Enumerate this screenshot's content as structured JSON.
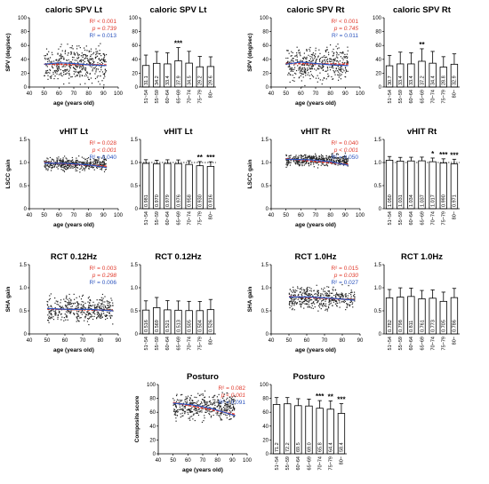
{
  "colors": {
    "red": "#e0392b",
    "blue": "#2a52be",
    "scatter": "#222222"
  },
  "chart_data": [
    {
      "type": "scatter",
      "title": "caloric SPV Lt",
      "ylabel": "SPV (deg/sec)",
      "xlabel": "age (years old)",
      "xlim": [
        40,
        100
      ],
      "xticks": [
        "40",
        "50",
        "60",
        "70",
        "80",
        "90",
        "100"
      ],
      "ylim": [
        0,
        100
      ],
      "yticks": [
        "0",
        "20",
        "40",
        "60",
        "80",
        "100"
      ],
      "stats": {
        "r2_red": "R² < 0.001",
        "p_red": "p = 0.739",
        "r2_blue": "R² = 0.013"
      },
      "scatter": {
        "xmin": 50,
        "xmax": 92,
        "center": 33,
        "spread": 18
      },
      "red_line": [
        [
          50,
          33
        ],
        [
          92,
          32
        ]
      ],
      "blue_curve": [
        [
          50,
          33
        ],
        [
          60,
          35
        ],
        [
          70,
          34
        ],
        [
          80,
          32
        ],
        [
          92,
          31
        ]
      ]
    },
    {
      "type": "bar",
      "title": "caloric SPV Lt",
      "categories": [
        "51~54",
        "55~59",
        "60~64",
        "65~69",
        "70~74",
        "75~79",
        "80~"
      ],
      "values": [
        31.1,
        34.2,
        33.4,
        37.9,
        34.5,
        29.2,
        29.6
      ],
      "value_labels": [
        "31.1",
        "34.2",
        "33.4",
        "37.9",
        "34.5",
        "29.2",
        "29.6"
      ],
      "errors": [
        15,
        17,
        16,
        19,
        17,
        15,
        14
      ],
      "ylim": [
        0,
        100
      ],
      "yticks": [
        "0",
        "20",
        "40",
        "60",
        "80",
        "100"
      ],
      "sig": [
        "",
        "",
        "",
        "***",
        "",
        "",
        ""
      ]
    },
    {
      "type": "scatter",
      "title": "caloric SPV Rt",
      "ylabel": "SPV (deg/sec)",
      "xlabel": "age (years old)",
      "xlim": [
        40,
        100
      ],
      "xticks": [
        "40",
        "50",
        "60",
        "70",
        "80",
        "90",
        "100"
      ],
      "ylim": [
        0,
        100
      ],
      "yticks": [
        "0",
        "20",
        "40",
        "60",
        "80",
        "100"
      ],
      "stats": {
        "r2_red": "R² < 0.001",
        "p_red": "p = 0.745",
        "r2_blue": "R² = 0.011"
      },
      "scatter": {
        "xmin": 50,
        "xmax": 92,
        "center": 33,
        "spread": 18
      },
      "red_line": [
        [
          50,
          34
        ],
        [
          92,
          33
        ]
      ],
      "blue_curve": [
        [
          50,
          33
        ],
        [
          60,
          36
        ],
        [
          70,
          34
        ],
        [
          80,
          32
        ],
        [
          92,
          31
        ]
      ]
    },
    {
      "type": "bar",
      "title": "caloric SPV Rt",
      "categories": [
        "51~54",
        "55~59",
        "60~64",
        "65~69",
        "70~74",
        "75~79",
        "80~"
      ],
      "values": [
        30.7,
        33.4,
        33.4,
        37.2,
        34.4,
        28.8,
        32.9
      ],
      "value_labels": [
        "30.7",
        "33.4",
        "33.4",
        "37.2",
        "34.4",
        "28.8",
        "32.9"
      ],
      "errors": [
        15,
        17,
        16,
        18,
        17,
        15,
        15
      ],
      "ylim": [
        0,
        100
      ],
      "yticks": [
        "0",
        "20",
        "40",
        "60",
        "80",
        "100"
      ],
      "sig": [
        "",
        "",
        "",
        "**",
        "",
        "",
        ""
      ]
    },
    {
      "type": "scatter",
      "title": "vHIT Lt",
      "ylabel": "LSCC gain",
      "xlabel": "age (years old)",
      "xlim": [
        40,
        100
      ],
      "xticks": [
        "40",
        "50",
        "60",
        "70",
        "80",
        "90",
        "100"
      ],
      "ylim": [
        0,
        1.5
      ],
      "yticks": [
        "0",
        "0.5",
        "1.0",
        "1.5"
      ],
      "stats": {
        "r2_red": "R² = 0.028",
        "p_red": "p < 0.001",
        "r2_blue": "R² = 0.040"
      },
      "scatter": {
        "xmin": 50,
        "xmax": 92,
        "center": 0.97,
        "spread": 0.1
      },
      "red_line": [
        [
          50,
          1.0
        ],
        [
          92,
          0.92
        ]
      ],
      "blue_curve": [
        [
          50,
          0.99
        ],
        [
          65,
          0.98
        ],
        [
          80,
          0.95
        ],
        [
          92,
          0.89
        ]
      ]
    },
    {
      "type": "bar",
      "title": "vHIT  Lt",
      "categories": [
        "51~54",
        "55~59",
        "60~64",
        "65~69",
        "70~74",
        "75~79",
        "80~"
      ],
      "values": [
        0.981,
        0.97,
        0.979,
        0.976,
        0.958,
        0.93,
        0.916
      ],
      "value_labels": [
        "0.981",
        "0.970",
        "0.979",
        "0.976",
        "0.958",
        "0.930",
        "0.916"
      ],
      "errors": [
        0.08,
        0.08,
        0.08,
        0.08,
        0.08,
        0.09,
        0.1
      ],
      "ylim": [
        0,
        1.5
      ],
      "yticks": [
        "0",
        "0.5",
        "1.0",
        "1.5"
      ],
      "refline": 1.0,
      "sig": [
        "",
        "",
        "",
        "",
        "",
        "**",
        "***"
      ]
    },
    {
      "type": "scatter",
      "title": "vHIT Rt",
      "ylabel": "LSCC gain",
      "xlabel": "age (years old)",
      "xlim": [
        40,
        100
      ],
      "xticks": [
        "40",
        "50",
        "60",
        "70",
        "80",
        "90",
        "100"
      ],
      "ylim": [
        0,
        1.5
      ],
      "yticks": [
        "0",
        "0.5",
        "1.0",
        "1.5"
      ],
      "stats": {
        "r2_red": "R² = 0.040",
        "p_red": "p < 0.001",
        "r2_blue": "R² = 0.050"
      },
      "scatter": {
        "xmin": 50,
        "xmax": 92,
        "center": 1.05,
        "spread": 0.1
      },
      "red_line": [
        [
          50,
          1.08
        ],
        [
          92,
          0.96
        ]
      ],
      "blue_curve": [
        [
          50,
          1.07
        ],
        [
          65,
          1.06
        ],
        [
          80,
          1.02
        ],
        [
          92,
          0.94
        ]
      ]
    },
    {
      "type": "bar",
      "title": "vHIT Rt",
      "categories": [
        "51~54",
        "55~59",
        "60~64",
        "65~69",
        "70~74",
        "75~79",
        "80~"
      ],
      "values": [
        1.05,
        1.031,
        1.034,
        1.037,
        1.017,
        0.99,
        0.971
      ],
      "value_labels": [
        "1.050",
        "1.031",
        "1.034",
        "1.037",
        "1.017",
        "0.990",
        "0.971"
      ],
      "errors": [
        0.08,
        0.08,
        0.08,
        0.08,
        0.08,
        0.09,
        0.1
      ],
      "ylim": [
        0,
        1.5
      ],
      "yticks": [
        "0",
        "0.5",
        "1.0",
        "1.5"
      ],
      "refline": 1.0,
      "sig": [
        "",
        "",
        "",
        "",
        "*",
        "***",
        "***"
      ]
    },
    {
      "type": "scatter",
      "title": "RCT 0.12Hz",
      "ylabel": "SHA gain",
      "xlabel": "age (years old)",
      "xlim": [
        40,
        90
      ],
      "xticks": [
        "40",
        "50",
        "60",
        "70",
        "80",
        "90"
      ],
      "ylim": [
        0,
        1.5
      ],
      "yticks": [
        "0",
        "0.5",
        "1.0",
        "1.5"
      ],
      "stats": {
        "r2_red": "R² = 0.003",
        "p_red": "p = 0.298",
        "r2_blue": "R² = 0.006"
      },
      "scatter": {
        "xmin": 50,
        "xmax": 87,
        "center": 0.53,
        "spread": 0.2
      },
      "red_line": [
        [
          50,
          0.54
        ],
        [
          87,
          0.51
        ]
      ],
      "blue_curve": [
        [
          50,
          0.55
        ],
        [
          62,
          0.53
        ],
        [
          75,
          0.53
        ],
        [
          87,
          0.5
        ]
      ]
    },
    {
      "type": "bar",
      "title": "RCT 0.12Hz",
      "categories": [
        "51~54",
        "55~59",
        "60~64",
        "65~69",
        "70~74",
        "75~79",
        "80~"
      ],
      "values": [
        0.516,
        0.569,
        0.521,
        0.513,
        0.505,
        0.504,
        0.526
      ],
      "value_labels": [
        "0.516",
        "0.569",
        "0.521",
        "0.513",
        "0.505",
        "0.504",
        "0.526"
      ],
      "errors": [
        0.2,
        0.22,
        0.2,
        0.2,
        0.2,
        0.2,
        0.22
      ],
      "ylim": [
        0,
        1.5
      ],
      "yticks": [
        "0",
        "0.5",
        "1.0",
        "1.5"
      ],
      "sig": [
        "",
        "",
        "",
        "",
        "",
        "",
        ""
      ]
    },
    {
      "type": "scatter",
      "title": "RCT 1.0Hz",
      "ylabel": "SHA gain",
      "xlabel": "age (years old)",
      "xlim": [
        40,
        90
      ],
      "xticks": [
        "40",
        "50",
        "60",
        "70",
        "80",
        "90"
      ],
      "ylim": [
        0,
        1.5
      ],
      "yticks": [
        "0",
        "0.5",
        "1.0",
        "1.5"
      ],
      "stats": {
        "r2_red": "R² = 0.015",
        "p_red": "p = 0.030",
        "r2_blue": "R² = 0.027"
      },
      "scatter": {
        "xmin": 50,
        "xmax": 87,
        "center": 0.78,
        "spread": 0.18
      },
      "red_line": [
        [
          50,
          0.81
        ],
        [
          87,
          0.74
        ]
      ],
      "blue_curve": [
        [
          50,
          0.8
        ],
        [
          62,
          0.8
        ],
        [
          75,
          0.77
        ],
        [
          87,
          0.73
        ]
      ]
    },
    {
      "type": "bar",
      "title": "RCT 1.0Hz",
      "categories": [
        "51~54",
        "55~59",
        "60~64",
        "65~69",
        "70~74",
        "75~79",
        "80~"
      ],
      "values": [
        0.782,
        0.798,
        0.811,
        0.761,
        0.773,
        0.705,
        0.786
      ],
      "value_labels": [
        "0.782",
        "0.798",
        "0.811",
        "0.761",
        "0.773",
        "0.705",
        "0.786"
      ],
      "errors": [
        0.18,
        0.2,
        0.18,
        0.18,
        0.18,
        0.2,
        0.2
      ],
      "ylim": [
        0,
        1.5
      ],
      "yticks": [
        "0",
        "0.5",
        "1.0",
        "1.5"
      ],
      "sig": [
        "",
        "",
        "",
        "",
        "",
        "",
        ""
      ]
    },
    {
      "type": "scatter",
      "title": "Posturo",
      "ylabel": "Composite score",
      "xlabel": "age (years old)",
      "xlim": [
        40,
        100
      ],
      "xticks": [
        "40",
        "50",
        "60",
        "70",
        "80",
        "90",
        "100"
      ],
      "ylim": [
        0,
        100
      ],
      "yticks": [
        "0",
        "20",
        "40",
        "60",
        "80",
        "100"
      ],
      "stats": {
        "r2_red": "R² = 0.082",
        "p_red": "p < 0.001",
        "r2_blue": "R² = 0.091"
      },
      "scatter": {
        "xmin": 50,
        "xmax": 92,
        "center": 68,
        "spread": 14
      },
      "red_line": [
        [
          50,
          74
        ],
        [
          92,
          57
        ]
      ],
      "blue_curve": [
        [
          50,
          73
        ],
        [
          62,
          71
        ],
        [
          75,
          66
        ],
        [
          92,
          55
        ]
      ]
    },
    {
      "type": "bar",
      "title": "Posturo",
      "categories": [
        "51~54",
        "55~59",
        "60~64",
        "65~69",
        "70~74",
        "75~79",
        "80~"
      ],
      "values": [
        71.2,
        72.2,
        69.5,
        69.0,
        65.8,
        64.4,
        58.4
      ],
      "value_labels": [
        "71.2",
        "72.2",
        "69.5",
        "69.0",
        "65.8",
        "64.4",
        "58.4"
      ],
      "errors": [
        10,
        9,
        10,
        10,
        11,
        12,
        14
      ],
      "ylim": [
        0,
        100
      ],
      "yticks": [
        "0",
        "20",
        "40",
        "60",
        "80",
        "100"
      ],
      "sig": [
        "",
        "",
        "",
        "",
        "***",
        "**",
        "***"
      ]
    }
  ]
}
